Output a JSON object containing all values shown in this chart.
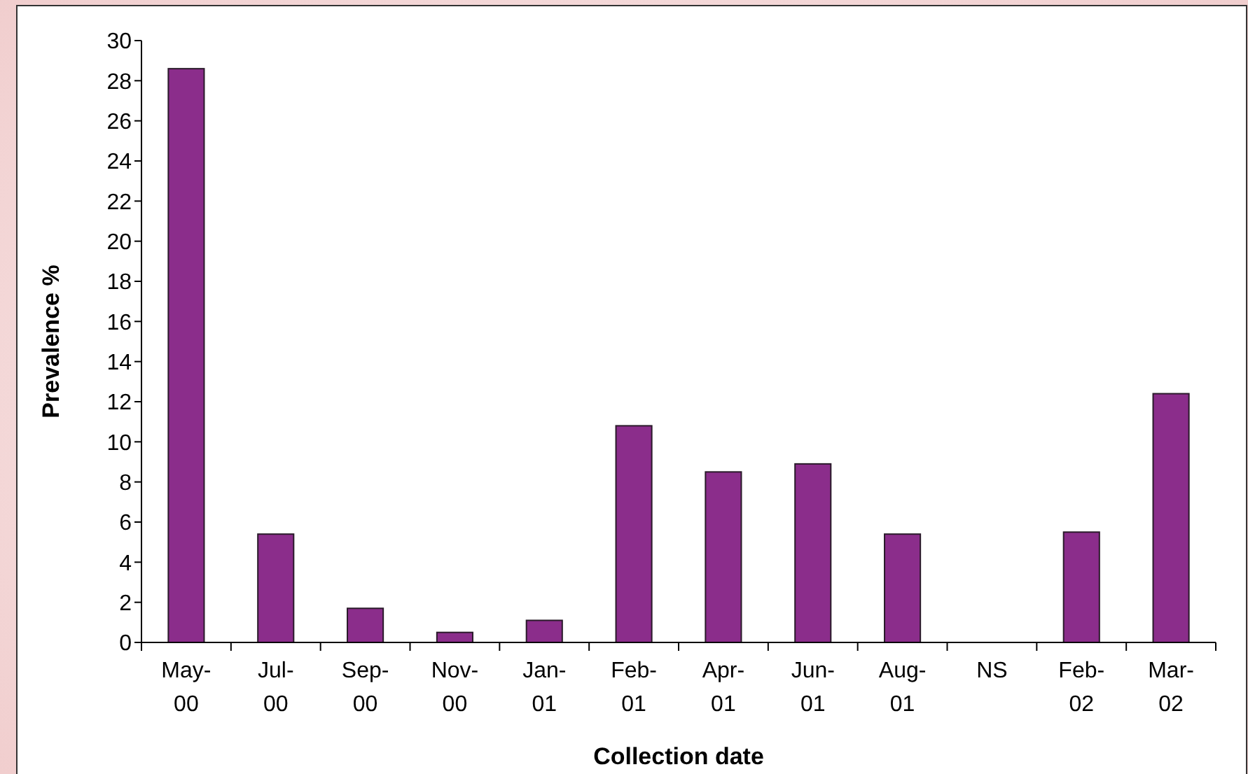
{
  "chart_data": {
    "type": "bar",
    "xlabel": "Collection date",
    "ylabel": "Prevalence %",
    "categories": [
      "May-00",
      "Jul-00",
      "Sep-00",
      "Nov-00",
      "Jan-01",
      "Feb-01",
      "Apr-01",
      "Jun-01",
      "Aug-01",
      "NS",
      "Feb-02",
      "Mar-02"
    ],
    "values": [
      28.6,
      5.4,
      1.7,
      0.5,
      1.1,
      10.8,
      8.5,
      8.9,
      5.4,
      null,
      5.5,
      12.4
    ],
    "color": "#8b2d8b",
    "ylim": [
      0,
      30
    ],
    "yticks": [
      0,
      2,
      4,
      6,
      8,
      10,
      12,
      14,
      16,
      18,
      20,
      22,
      24,
      26,
      28,
      30
    ],
    "grid": false
  }
}
